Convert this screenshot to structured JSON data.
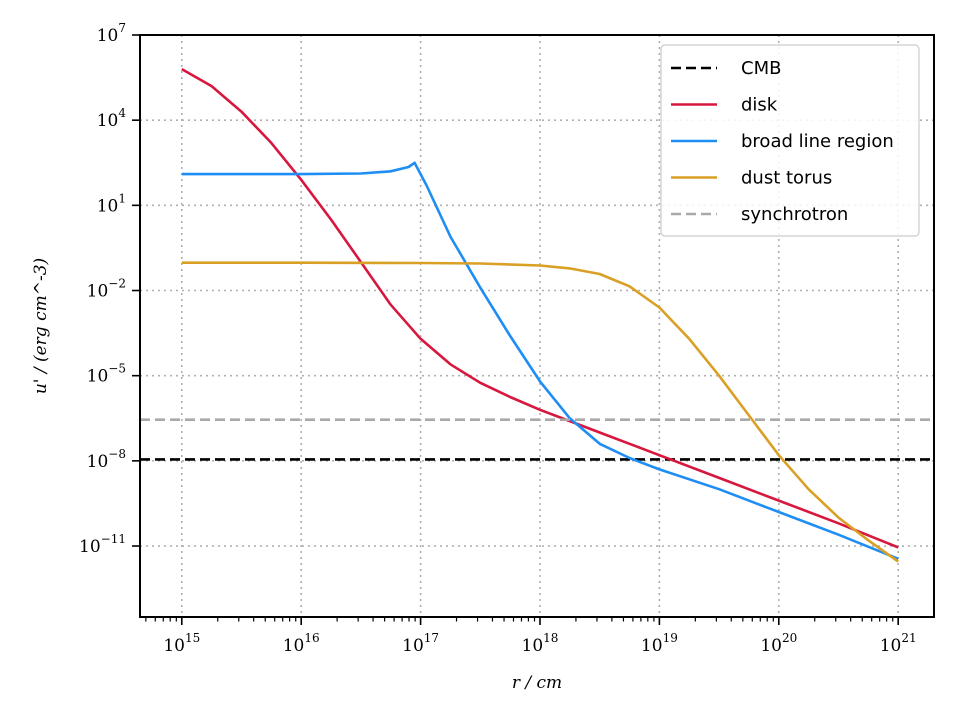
{
  "chart_data": {
    "type": "line",
    "xlabel": "r / cm",
    "ylabel": "u' / (erg cm^-3)",
    "xscale": "log",
    "yscale": "log",
    "xlim_exp": [
      14.65,
      21.3
    ],
    "ylim_exp": [
      -13.5,
      7
    ],
    "xticks": [
      {
        "base": "10",
        "exp": "15",
        "v": 15
      },
      {
        "base": "10",
        "exp": "16",
        "v": 16
      },
      {
        "base": "10",
        "exp": "17",
        "v": 17
      },
      {
        "base": "10",
        "exp": "18",
        "v": 18
      },
      {
        "base": "10",
        "exp": "19",
        "v": 19
      },
      {
        "base": "10",
        "exp": "20",
        "v": 20
      },
      {
        "base": "10",
        "exp": "21",
        "v": 21
      }
    ],
    "yticks": [
      {
        "base": "10",
        "exp": "7",
        "v": 7
      },
      {
        "base": "10",
        "exp": "4",
        "v": 4
      },
      {
        "base": "10",
        "exp": "1",
        "v": 1
      },
      {
        "base": "10",
        "exp": "−2",
        "v": -2
      },
      {
        "base": "10",
        "exp": "−5",
        "v": -5
      },
      {
        "base": "10",
        "exp": "−8",
        "v": -8
      },
      {
        "base": "10",
        "exp": "−11",
        "v": -11
      }
    ],
    "grid": true,
    "legend_position": "top-right",
    "series": [
      {
        "name": "CMB",
        "color": "#000000",
        "dash": "dashed",
        "x": [
          14.65,
          21.3
        ],
        "y": [
          -7.95,
          -7.95
        ]
      },
      {
        "name": "disk",
        "color": "#d7173d",
        "dash": "solid",
        "x": [
          15,
          15.25,
          15.5,
          15.75,
          16,
          16.25,
          16.5,
          16.75,
          17,
          17.25,
          17.5,
          17.75,
          18,
          18.25,
          18.5,
          18.75,
          19,
          19.5,
          20,
          20.5,
          21
        ],
        "y": [
          5.8,
          5.2,
          4.3,
          3.2,
          1.9,
          0.5,
          -1.0,
          -2.5,
          -3.7,
          -4.6,
          -5.25,
          -5.75,
          -6.2,
          -6.6,
          -7.0,
          -7.4,
          -7.8,
          -8.6,
          -9.4,
          -10.2,
          -11.05
        ]
      },
      {
        "name": "broad line region",
        "color": "#1e8ef5",
        "dash": "solid",
        "x": [
          15,
          15.5,
          16,
          16.5,
          16.75,
          16.9,
          16.95,
          17.05,
          17.25,
          17.5,
          17.75,
          18,
          18.25,
          18.5,
          18.75,
          19,
          19.5,
          20,
          20.5,
          21
        ],
        "y": [
          2.1,
          2.1,
          2.1,
          2.12,
          2.2,
          2.35,
          2.5,
          1.7,
          -0.1,
          -1.9,
          -3.6,
          -5.2,
          -6.5,
          -7.4,
          -7.9,
          -8.3,
          -9.0,
          -9.8,
          -10.6,
          -11.45
        ]
      },
      {
        "name": "dust torus",
        "color": "#daa025",
        "dash": "solid",
        "x": [
          15,
          16,
          17,
          17.5,
          18,
          18.25,
          18.5,
          18.75,
          19,
          19.25,
          19.5,
          19.75,
          20,
          20.25,
          20.5,
          20.75,
          21
        ],
        "y": [
          -1.02,
          -1.02,
          -1.03,
          -1.05,
          -1.12,
          -1.22,
          -1.42,
          -1.85,
          -2.6,
          -3.7,
          -5.0,
          -6.4,
          -7.8,
          -9.0,
          -10.0,
          -10.8,
          -11.55
        ]
      },
      {
        "name": "synchrotron",
        "color": "#a9a9a9",
        "dash": "dashed",
        "x": [
          14.65,
          21.3
        ],
        "y": [
          -6.55,
          -6.55
        ]
      }
    ]
  }
}
